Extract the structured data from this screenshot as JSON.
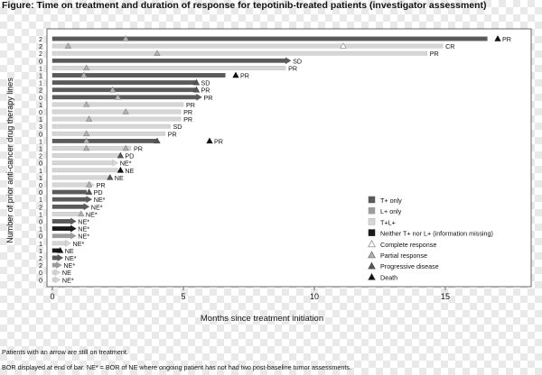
{
  "figure_title": "Figure: Time on treatment and duration of response for tepotinib-treated patients (investigator assessment)",
  "notes": {
    "arrow_note": "Patients with an arrow are still on treatment.",
    "bor_note": "BOR displayed at end of bar. NE* = BOR of NE where ongoing patient has not had two post-baseline tumor assessments."
  },
  "colors": {
    "t_only": "#5a5a5a",
    "l_only": "#9c9c9c",
    "t_l": "#d6d6d6",
    "neither": "#1a1a1a",
    "response_marker": "#b0b0b0",
    "progressive_marker": "#555555",
    "death_marker": "#111111"
  },
  "chart_data": {
    "type": "swimmer",
    "xlabel": "Months since treatment initiation",
    "ylabel": "Number of prior anti-cancer drug therapy lines",
    "xlim": [
      0,
      18
    ],
    "xticks": [
      0,
      5,
      10,
      15
    ],
    "grid": false,
    "legend_position": "right",
    "legend": [
      {
        "label": "T+ only",
        "kind": "square",
        "color": "#5a5a5a"
      },
      {
        "label": "L+ only",
        "kind": "square",
        "color": "#9c9c9c"
      },
      {
        "label": "T+L+",
        "kind": "square",
        "color": "#d6d6d6"
      },
      {
        "label": "Neither T+ nor L+ (information missing)",
        "kind": "square",
        "color": "#1a1a1a"
      },
      {
        "label": "Complete response",
        "kind": "triangle-open",
        "color": "#ffffff"
      },
      {
        "label": "Partial response",
        "kind": "triangle",
        "color": "#b0b0b0"
      },
      {
        "label": "Progressive disease",
        "kind": "triangle",
        "color": "#555555"
      },
      {
        "label": "Death",
        "kind": "triangle",
        "color": "#111111"
      }
    ],
    "patients": [
      {
        "lines": "2",
        "group": "t_only",
        "end": 16.6,
        "arrow": false,
        "bor": "PR",
        "events": [
          {
            "t": 2.8,
            "type": "pr"
          },
          {
            "t": 17.0,
            "type": "death"
          }
        ]
      },
      {
        "lines": "2",
        "group": "t_l",
        "end": 14.9,
        "arrow": false,
        "bor": "CR",
        "events": [
          {
            "t": 0.6,
            "type": "pr"
          },
          {
            "t": 11.1,
            "type": "cr"
          }
        ]
      },
      {
        "lines": "2",
        "group": "t_l",
        "end": 14.3,
        "arrow": false,
        "bor": "PR",
        "events": [
          {
            "t": 4.0,
            "type": "pr"
          }
        ]
      },
      {
        "lines": "0",
        "group": "t_only",
        "end": 8.9,
        "arrow": true,
        "bor": "SD",
        "events": []
      },
      {
        "lines": "1",
        "group": "t_l",
        "end": 8.9,
        "arrow": false,
        "bor": "PR",
        "events": [
          {
            "t": 1.3,
            "type": "pr"
          }
        ]
      },
      {
        "lines": "1",
        "group": "t_only",
        "end": 6.6,
        "arrow": false,
        "bor": "PR",
        "events": [
          {
            "t": 1.2,
            "type": "pr"
          },
          {
            "t": 7.0,
            "type": "death"
          }
        ]
      },
      {
        "lines": "1",
        "group": "t_only",
        "end": 5.5,
        "arrow": false,
        "bor": "SD",
        "events": [
          {
            "t": 5.5,
            "type": "pd"
          }
        ]
      },
      {
        "lines": "2",
        "group": "t_only",
        "end": 5.5,
        "arrow": false,
        "bor": "PR",
        "events": [
          {
            "t": 2.3,
            "type": "pr"
          },
          {
            "t": 5.5,
            "type": "pd"
          }
        ]
      },
      {
        "lines": "0",
        "group": "t_only",
        "end": 5.5,
        "arrow": true,
        "bor": "PR",
        "events": [
          {
            "t": 2.5,
            "type": "pr"
          }
        ]
      },
      {
        "lines": "1",
        "group": "t_l",
        "end": 5.0,
        "arrow": false,
        "bor": "PR",
        "events": [
          {
            "t": 1.3,
            "type": "pr"
          }
        ]
      },
      {
        "lines": "0",
        "group": "t_l",
        "end": 4.9,
        "arrow": false,
        "bor": "PR",
        "events": [
          {
            "t": 2.8,
            "type": "pr"
          }
        ]
      },
      {
        "lines": "1",
        "group": "t_l",
        "end": 4.9,
        "arrow": false,
        "bor": "PR",
        "events": [
          {
            "t": 1.4,
            "type": "pr"
          }
        ]
      },
      {
        "lines": "3",
        "group": "t_l",
        "end": 4.5,
        "arrow": false,
        "bor": "SD",
        "events": []
      },
      {
        "lines": "0",
        "group": "t_l",
        "end": 4.3,
        "arrow": false,
        "bor": "PR",
        "events": [
          {
            "t": 1.3,
            "type": "pr"
          }
        ]
      },
      {
        "lines": "1",
        "group": "t_only",
        "end": 4.0,
        "arrow": false,
        "bor": "PR",
        "events": [
          {
            "t": 1.3,
            "type": "pr"
          },
          {
            "t": 4.0,
            "type": "pd"
          },
          {
            "t": 6.0,
            "type": "death"
          }
        ]
      },
      {
        "lines": "1",
        "group": "t_l",
        "end": 3.0,
        "arrow": false,
        "bor": "PR",
        "events": [
          {
            "t": 1.3,
            "type": "pr"
          },
          {
            "t": 2.8,
            "type": "pr"
          }
        ]
      },
      {
        "lines": "2",
        "group": "t_l",
        "end": 2.6,
        "arrow": false,
        "bor": "PD",
        "events": [
          {
            "t": 2.6,
            "type": "pd"
          }
        ]
      },
      {
        "lines": "0",
        "group": "t_l",
        "end": 2.3,
        "arrow": true,
        "bor": "NE*",
        "events": []
      },
      {
        "lines": "1",
        "group": "t_l",
        "end": 2.5,
        "arrow": false,
        "bor": "NE",
        "events": [
          {
            "t": 2.6,
            "type": "death"
          }
        ]
      },
      {
        "lines": "1",
        "group": "t_l",
        "end": 2.2,
        "arrow": false,
        "bor": "NE",
        "events": [
          {
            "t": 2.2,
            "type": "pd"
          }
        ]
      },
      {
        "lines": "0",
        "group": "t_l",
        "end": 1.4,
        "arrow": true,
        "bor": "PR",
        "events": [
          {
            "t": 1.4,
            "type": "pr"
          }
        ]
      },
      {
        "lines": "0",
        "group": "t_only",
        "end": 1.3,
        "arrow": false,
        "bor": "PD",
        "events": [
          {
            "t": 1.4,
            "type": "pd"
          }
        ]
      },
      {
        "lines": "1",
        "group": "t_only",
        "end": 1.3,
        "arrow": true,
        "bor": "NE*",
        "events": []
      },
      {
        "lines": "2",
        "group": "t_only",
        "end": 1.2,
        "arrow": true,
        "bor": "NE*",
        "events": []
      },
      {
        "lines": "1",
        "group": "t_l",
        "end": 1.1,
        "arrow": false,
        "bor": "NE*",
        "events": [
          {
            "t": 1.1,
            "type": "pr"
          }
        ]
      },
      {
        "lines": "0",
        "group": "t_only",
        "end": 0.7,
        "arrow": true,
        "bor": "NE*",
        "events": []
      },
      {
        "lines": "1",
        "group": "neither",
        "end": 0.7,
        "arrow": true,
        "bor": "NE*",
        "events": []
      },
      {
        "lines": "0",
        "group": "l_only",
        "end": 0.7,
        "arrow": true,
        "bor": "NE*",
        "events": []
      },
      {
        "lines": "1",
        "group": "t_l",
        "end": 0.5,
        "arrow": true,
        "bor": "NE*",
        "events": []
      },
      {
        "lines": "1",
        "group": "neither",
        "end": 0.3,
        "arrow": false,
        "bor": "NE",
        "events": [
          {
            "t": 0.3,
            "type": "death"
          }
        ]
      },
      {
        "lines": "2",
        "group": "t_only",
        "end": 0.2,
        "arrow": true,
        "bor": "NE*",
        "events": []
      },
      {
        "lines": "2",
        "group": "l_only",
        "end": 0.15,
        "arrow": true,
        "bor": "NE*",
        "events": []
      },
      {
        "lines": "0",
        "group": "t_l",
        "end": 0.1,
        "arrow": true,
        "bor": "NE",
        "events": []
      },
      {
        "lines": "0",
        "group": "t_l",
        "end": 0.1,
        "arrow": true,
        "bor": "NE*",
        "events": []
      }
    ]
  }
}
